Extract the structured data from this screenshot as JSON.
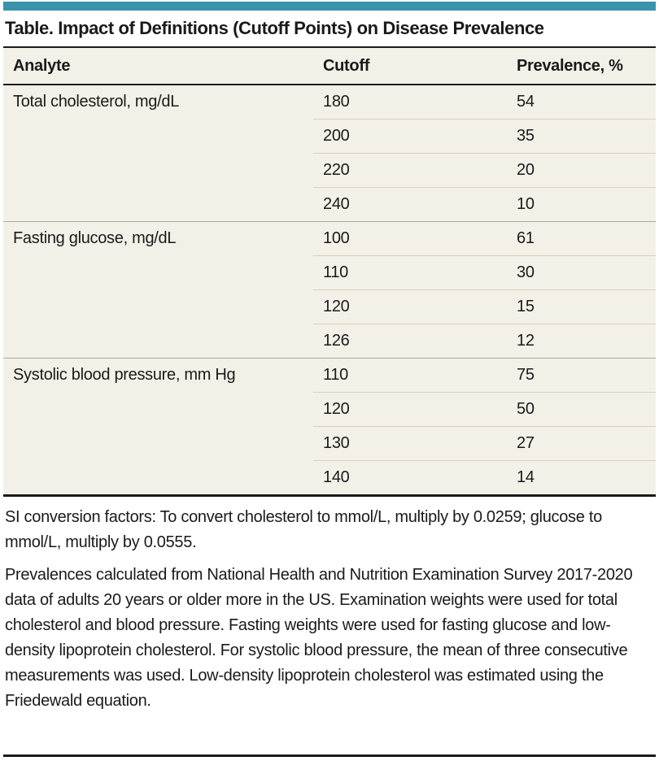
{
  "colors": {
    "accent_teal": "#3A93AB",
    "table_background": "#F3F1E7",
    "row_separator": "#D8D0BD",
    "group_separator": "#ACA99F",
    "rule_black": "#1A1A1A"
  },
  "title": "Table. Impact of Definitions (Cutoff Points) on Disease Prevalence",
  "table": {
    "columns": [
      "Analyte",
      "Cutoff",
      "Prevalence, %"
    ],
    "groups": [
      {
        "analyte": "Total cholesterol, mg/dL",
        "rows": [
          {
            "cutoff": "180",
            "prevalence": "54"
          },
          {
            "cutoff": "200",
            "prevalence": "35"
          },
          {
            "cutoff": "220",
            "prevalence": "20"
          },
          {
            "cutoff": "240",
            "prevalence": "10"
          }
        ]
      },
      {
        "analyte": "Fasting glucose, mg/dL",
        "rows": [
          {
            "cutoff": "100",
            "prevalence": "61"
          },
          {
            "cutoff": "110",
            "prevalence": "30"
          },
          {
            "cutoff": "120",
            "prevalence": "15"
          },
          {
            "cutoff": "126",
            "prevalence": "12"
          }
        ]
      },
      {
        "analyte": "Systolic blood pressure, mm Hg",
        "rows": [
          {
            "cutoff": "110",
            "prevalence": "75"
          },
          {
            "cutoff": "120",
            "prevalence": "50"
          },
          {
            "cutoff": "130",
            "prevalence": "27"
          },
          {
            "cutoff": "140",
            "prevalence": "14"
          }
        ]
      }
    ]
  },
  "footnotes": [
    "SI conversion factors: To convert cholesterol to mmol/L, multiply by 0.0259; glucose to mmol/L, multiply by 0.0555.",
    "Prevalences calculated from National Health and Nutrition Examination Survey 2017-2020 data of adults 20 years or older more in the US. Examination weights were used for total cholesterol and blood pressure. Fasting weights were used for fasting glucose and low-density lipoprotein cholesterol. For systolic blood pressure, the mean of three consecutive measurements was used. Low-density lipoprotein cholesterol was estimated using the Friedewald equation."
  ]
}
